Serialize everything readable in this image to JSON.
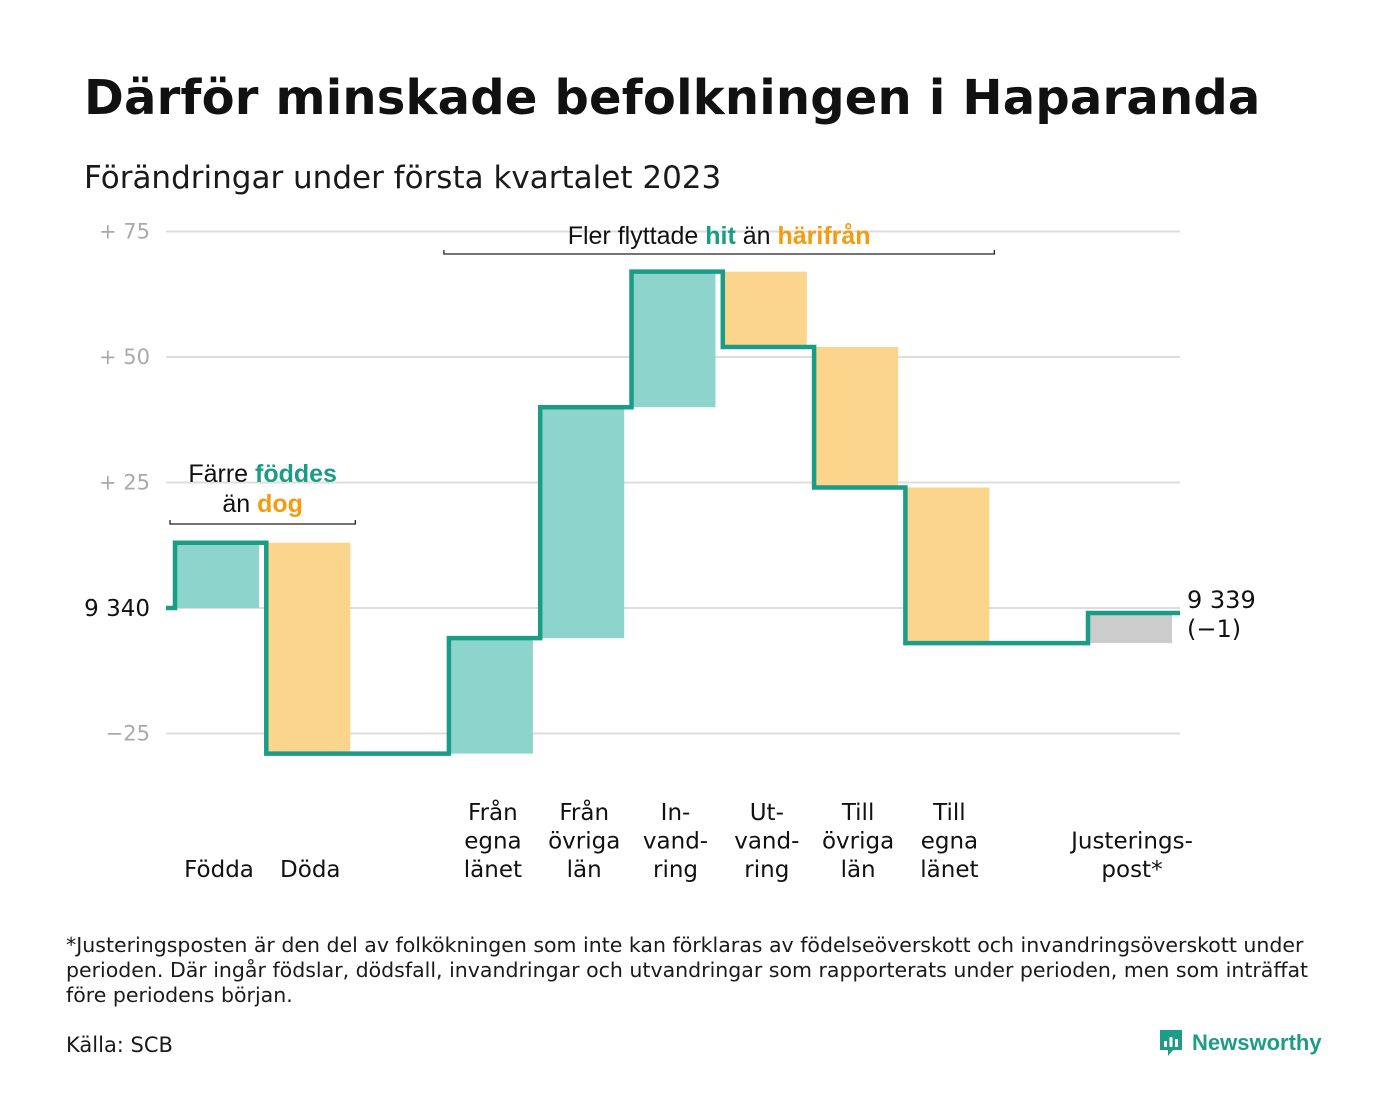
{
  "header": {
    "title": "Därför minskade befolkningen i Haparanda",
    "subtitle": "Förändringar under första kvartalet 2023"
  },
  "colors": {
    "teal": "#1b9c87",
    "teal_fill": "#8dd5cc",
    "orange": "#f39c12",
    "orange_fill": "#fad58b",
    "gray_fill": "#cccccc",
    "grid": "#dddddd",
    "axis_label": "#aaaaaa"
  },
  "chart_data": {
    "type": "waterfall",
    "baseline_value": 9340,
    "baseline_label": "9 340",
    "end_value": 9339,
    "end_label": "9 339",
    "end_change_label": "(−1)",
    "y_ticks": [
      {
        "value": 75,
        "label": "+ 75"
      },
      {
        "value": 50,
        "label": "+ 50"
      },
      {
        "value": 25,
        "label": "+ 25"
      },
      {
        "value": -25,
        "label": "−25"
      }
    ],
    "ylim": [
      -30,
      78
    ],
    "grid": true,
    "steps": [
      {
        "category": "Födda",
        "lines": [
          "Födda"
        ],
        "change": 13,
        "kind": "gain"
      },
      {
        "category": "Döda",
        "lines": [
          "Döda"
        ],
        "change": -42,
        "kind": "loss"
      },
      {
        "category": "",
        "lines": [],
        "change": 0,
        "kind": "spacer"
      },
      {
        "category": "Från egna länet",
        "lines": [
          "Från",
          "egna",
          "länet"
        ],
        "change": 23,
        "kind": "gain"
      },
      {
        "category": "Från övriga län",
        "lines": [
          "Från",
          "övriga",
          "län"
        ],
        "change": 46,
        "kind": "gain"
      },
      {
        "category": "Invandring",
        "lines": [
          "In-",
          "vand-",
          "ring"
        ],
        "change": 27,
        "kind": "gain"
      },
      {
        "category": "Utvandring",
        "lines": [
          "Ut-",
          "vand-",
          "ring"
        ],
        "change": -15,
        "kind": "loss"
      },
      {
        "category": "Till övriga län",
        "lines": [
          "Till",
          "övriga",
          "län"
        ],
        "change": -28,
        "kind": "loss"
      },
      {
        "category": "Till egna länet",
        "lines": [
          "Till",
          "egna",
          "länet"
        ],
        "change": -31,
        "kind": "loss"
      },
      {
        "category": "",
        "lines": [],
        "change": 0,
        "kind": "spacer"
      },
      {
        "category": "Justeringspost*",
        "lines": [
          "Justerings-",
          "post*"
        ],
        "change": 6,
        "kind": "adjust"
      }
    ],
    "annotations": [
      {
        "id": "births",
        "lines": [
          [
            {
              "text": "Färre ",
              "style": "plain"
            },
            {
              "text": "föddes",
              "style": "teal"
            }
          ],
          [
            {
              "text": "än ",
              "style": "plain"
            },
            {
              "text": "dog",
              "style": "orange"
            }
          ]
        ],
        "span": [
          0,
          1
        ]
      },
      {
        "id": "migration",
        "lines": [
          [
            {
              "text": "Fler flyttade ",
              "style": "plain"
            },
            {
              "text": "hit",
              "style": "teal"
            },
            {
              "text": " än ",
              "style": "plain"
            },
            {
              "text": "härifrån",
              "style": "orange"
            }
          ]
        ],
        "span": [
          3,
          8
        ]
      }
    ]
  },
  "footnote": "*Justeringsposten är den del av folkökningen som inte kan förklaras av födelseöverskott och invandringsöverskott under perioden. Där ingår födslar, dödsfall, invandringar och utvandringar som rapporterats under perioden, men som inträffat före periodens början.",
  "source": "Källa: SCB",
  "brand": {
    "name": "Newsworthy",
    "icon": "newsworthy-logo-icon"
  }
}
